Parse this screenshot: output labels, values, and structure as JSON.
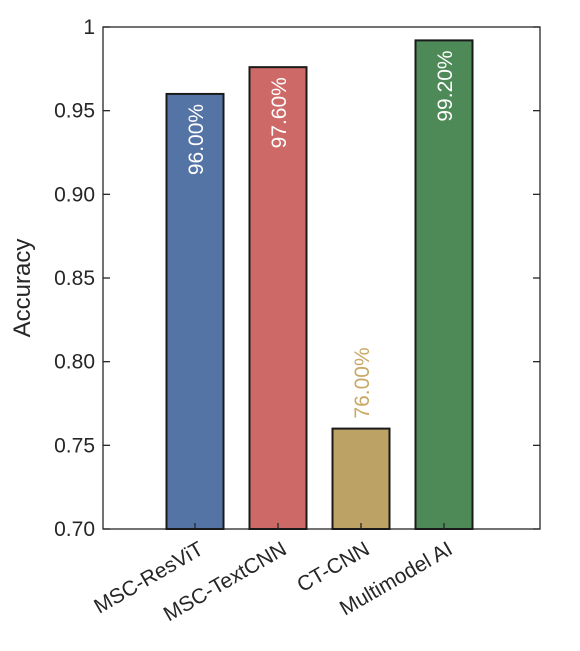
{
  "chart_data": {
    "type": "bar",
    "title": "",
    "xlabel": "",
    "ylabel": "Accuracy",
    "ylim": [
      0.7,
      1.0
    ],
    "yticks": [
      0.7,
      0.75,
      0.8,
      0.85,
      0.9,
      0.95,
      1.0
    ],
    "ytick_labels": [
      "0.70",
      "0.75",
      "0.80",
      "0.85",
      "0.90",
      "0.95",
      "1"
    ],
    "categories": [
      "MSC-ResViT",
      "MSC-TextCNN",
      "CT-CNN",
      "Multimodel AI"
    ],
    "values": [
      0.96,
      0.976,
      0.76,
      0.992
    ],
    "data_labels": [
      "96.00%",
      "97.60%",
      "76.00%",
      "99.20%"
    ],
    "colors": [
      "#5474a6",
      "#cd6a68",
      "#bda265",
      "#4e8a57"
    ],
    "label_colors": [
      "#ffffff",
      "#ffffff",
      "#c9a866",
      "#ffffff"
    ],
    "label_placement": [
      "inside",
      "inside",
      "above",
      "inside"
    ],
    "grid": false,
    "legend": "none"
  }
}
